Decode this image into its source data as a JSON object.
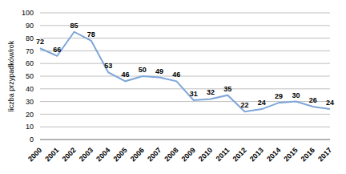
{
  "chart_data": {
    "type": "line",
    "ylabel": "liczba przypadków/rok",
    "categories": [
      "2000",
      "2001",
      "2002",
      "2003",
      "2004",
      "2005",
      "2006",
      "2007",
      "2008",
      "2009",
      "2010",
      "2011",
      "2012",
      "2013",
      "2014",
      "2015",
      "2016",
      "2017"
    ],
    "values": [
      72,
      66,
      85,
      78,
      53,
      46,
      50,
      49,
      46,
      31,
      32,
      35,
      22,
      24,
      29,
      30,
      26,
      24
    ],
    "color": "#7ea6d8",
    "ylim": [
      0,
      100
    ],
    "yticks": [
      0,
      10,
      20,
      30,
      40,
      50,
      60,
      70,
      80,
      90,
      100
    ],
    "grid": true,
    "data_labels": true
  }
}
